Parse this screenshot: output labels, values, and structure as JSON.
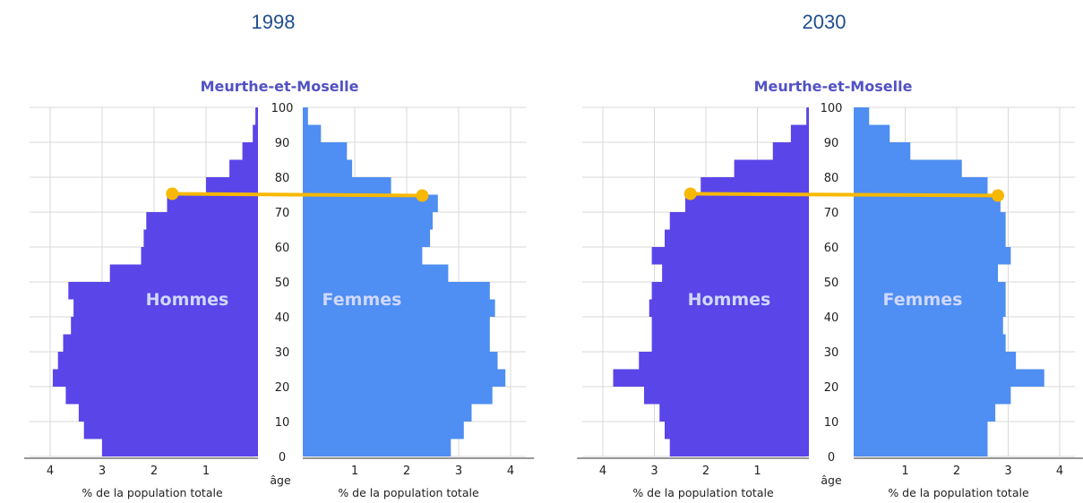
{
  "chart_data": [
    {
      "type": "population-pyramid",
      "year": "1998",
      "title": "Meurthe-et-Moselle",
      "left_label": "Hommes",
      "right_label": "Femmes",
      "axis_label": "âge",
      "xlabel": "% de la population totale",
      "age_ticks": [
        "0",
        "10",
        "20",
        "30",
        "40",
        "50",
        "60",
        "70",
        "80",
        "90",
        "100"
      ],
      "x_ticks": [
        "1",
        "2",
        "3",
        "4"
      ],
      "xlim": [
        0,
        4
      ],
      "ylim": [
        0,
        100
      ],
      "grid": true,
      "colors": {
        "hommes": "#5a45e8",
        "femmes": "#4f8ef2",
        "marker": "#f6b800"
      },
      "marker_age": 75,
      "marker_hommes": 1.65,
      "marker_femmes": 2.3,
      "hommes": [
        {
          "from": 0,
          "to": 5,
          "value": 3.0
        },
        {
          "from": 5,
          "to": 10,
          "value": 3.35
        },
        {
          "from": 10,
          "to": 15,
          "value": 3.45
        },
        {
          "from": 15,
          "to": 20,
          "value": 3.7
        },
        {
          "from": 20,
          "to": 25,
          "value": 3.95
        },
        {
          "from": 25,
          "to": 30,
          "value": 3.85
        },
        {
          "from": 30,
          "to": 35,
          "value": 3.75
        },
        {
          "from": 35,
          "to": 40,
          "value": 3.6
        },
        {
          "from": 40,
          "to": 45,
          "value": 3.55
        },
        {
          "from": 45,
          "to": 50,
          "value": 3.65
        },
        {
          "from": 50,
          "to": 55,
          "value": 2.85
        },
        {
          "from": 55,
          "to": 60,
          "value": 2.25
        },
        {
          "from": 60,
          "to": 65,
          "value": 2.2
        },
        {
          "from": 65,
          "to": 70,
          "value": 2.15
        },
        {
          "from": 70,
          "to": 75,
          "value": 1.75
        },
        {
          "from": 75,
          "to": 80,
          "value": 1.0
        },
        {
          "from": 80,
          "to": 85,
          "value": 0.55
        },
        {
          "from": 85,
          "to": 90,
          "value": 0.3
        },
        {
          "from": 90,
          "to": 95,
          "value": 0.1
        },
        {
          "from": 95,
          "to": 100,
          "value": 0.05
        }
      ],
      "femmes": [
        {
          "from": 0,
          "to": 5,
          "value": 2.85
        },
        {
          "from": 5,
          "to": 10,
          "value": 3.1
        },
        {
          "from": 10,
          "to": 15,
          "value": 3.25
        },
        {
          "from": 15,
          "to": 20,
          "value": 3.65
        },
        {
          "from": 20,
          "to": 25,
          "value": 3.9
        },
        {
          "from": 25,
          "to": 30,
          "value": 3.75
        },
        {
          "from": 30,
          "to": 35,
          "value": 3.6
        },
        {
          "from": 35,
          "to": 40,
          "value": 3.6
        },
        {
          "from": 40,
          "to": 45,
          "value": 3.7
        },
        {
          "from": 45,
          "to": 50,
          "value": 3.6
        },
        {
          "from": 50,
          "to": 55,
          "value": 2.8
        },
        {
          "from": 55,
          "to": 60,
          "value": 2.3
        },
        {
          "from": 60,
          "to": 65,
          "value": 2.45
        },
        {
          "from": 65,
          "to": 70,
          "value": 2.5
        },
        {
          "from": 70,
          "to": 75,
          "value": 2.6
        },
        {
          "from": 75,
          "to": 80,
          "value": 1.7
        },
        {
          "from": 80,
          "to": 85,
          "value": 0.95
        },
        {
          "from": 85,
          "to": 90,
          "value": 0.85
        },
        {
          "from": 90,
          "to": 95,
          "value": 0.35
        },
        {
          "from": 95,
          "to": 100,
          "value": 0.1
        }
      ]
    },
    {
      "type": "population-pyramid",
      "year": "2030",
      "title": "Meurthe-et-Moselle",
      "left_label": "Hommes",
      "right_label": "Femmes",
      "axis_label": "âge",
      "xlabel": "% de la population totale",
      "age_ticks": [
        "0",
        "10",
        "20",
        "30",
        "40",
        "50",
        "60",
        "70",
        "80",
        "90",
        "100"
      ],
      "x_ticks": [
        "1",
        "2",
        "3",
        "4"
      ],
      "xlim": [
        0,
        4
      ],
      "ylim": [
        0,
        100
      ],
      "grid": true,
      "colors": {
        "hommes": "#5a45e8",
        "femmes": "#4f8ef2",
        "marker": "#f6b800"
      },
      "marker_age": 75,
      "marker_hommes": 2.3,
      "marker_femmes": 2.8,
      "hommes": [
        {
          "from": 0,
          "to": 5,
          "value": 2.7
        },
        {
          "from": 5,
          "to": 10,
          "value": 2.8
        },
        {
          "from": 10,
          "to": 15,
          "value": 2.9
        },
        {
          "from": 15,
          "to": 20,
          "value": 3.2
        },
        {
          "from": 20,
          "to": 25,
          "value": 3.8
        },
        {
          "from": 25,
          "to": 30,
          "value": 3.3
        },
        {
          "from": 30,
          "to": 35,
          "value": 3.05
        },
        {
          "from": 35,
          "to": 40,
          "value": 3.05
        },
        {
          "from": 40,
          "to": 45,
          "value": 3.1
        },
        {
          "from": 45,
          "to": 50,
          "value": 3.05
        },
        {
          "from": 50,
          "to": 55,
          "value": 2.85
        },
        {
          "from": 55,
          "to": 60,
          "value": 3.05
        },
        {
          "from": 60,
          "to": 65,
          "value": 2.8
        },
        {
          "from": 65,
          "to": 70,
          "value": 2.7
        },
        {
          "from": 70,
          "to": 75,
          "value": 2.4
        },
        {
          "from": 75,
          "to": 80,
          "value": 2.1
        },
        {
          "from": 80,
          "to": 85,
          "value": 1.45
        },
        {
          "from": 85,
          "to": 90,
          "value": 0.7
        },
        {
          "from": 90,
          "to": 95,
          "value": 0.35
        },
        {
          "from": 95,
          "to": 100,
          "value": 0.05
        }
      ],
      "femmes": [
        {
          "from": 0,
          "to": 5,
          "value": 2.6
        },
        {
          "from": 5,
          "to": 10,
          "value": 2.6
        },
        {
          "from": 10,
          "to": 15,
          "value": 2.75
        },
        {
          "from": 15,
          "to": 20,
          "value": 3.05
        },
        {
          "from": 20,
          "to": 25,
          "value": 3.7
        },
        {
          "from": 25,
          "to": 30,
          "value": 3.15
        },
        {
          "from": 30,
          "to": 35,
          "value": 2.95
        },
        {
          "from": 35,
          "to": 40,
          "value": 2.9
        },
        {
          "from": 40,
          "to": 45,
          "value": 2.95
        },
        {
          "from": 45,
          "to": 50,
          "value": 2.95
        },
        {
          "from": 50,
          "to": 55,
          "value": 2.8
        },
        {
          "from": 55,
          "to": 60,
          "value": 3.05
        },
        {
          "from": 60,
          "to": 65,
          "value": 2.95
        },
        {
          "from": 65,
          "to": 70,
          "value": 2.95
        },
        {
          "from": 70,
          "to": 75,
          "value": 2.85
        },
        {
          "from": 75,
          "to": 80,
          "value": 2.6
        },
        {
          "from": 80,
          "to": 85,
          "value": 2.1
        },
        {
          "from": 85,
          "to": 90,
          "value": 1.1
        },
        {
          "from": 90,
          "to": 95,
          "value": 0.7
        },
        {
          "from": 95,
          "to": 100,
          "value": 0.3
        }
      ]
    }
  ]
}
